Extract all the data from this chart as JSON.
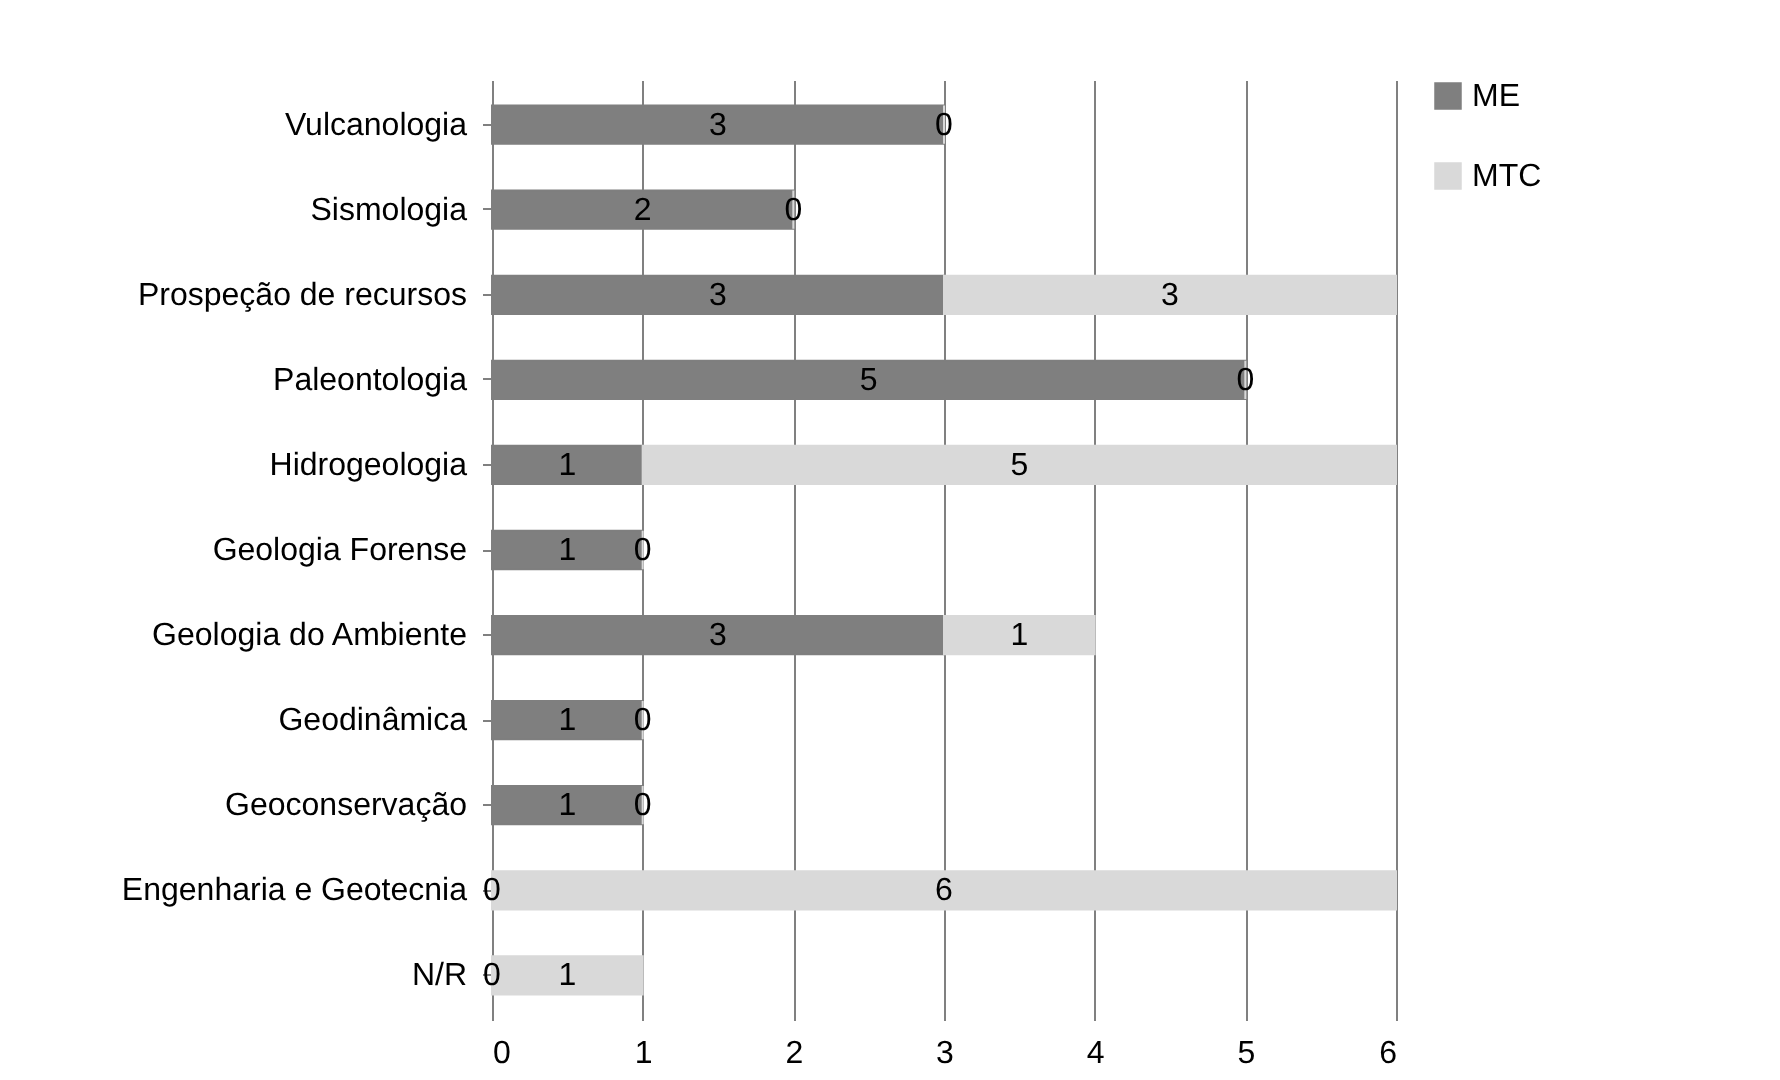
{
  "chart_data": {
    "type": "bar",
    "orientation": "horizontal",
    "stacked": true,
    "categories": [
      "Vulcanologia",
      "Sismologia",
      "Prospeção de recursos",
      "Paleontologia",
      "Hidrogeologia",
      "Geologia Forense",
      "Geologia do Ambiente",
      "Geodinâmica",
      "Geoconservação",
      "Engenharia e Geotecnia",
      "N/R"
    ],
    "series": [
      {
        "name": "ME",
        "color": "#7f7f7f",
        "values": [
          3,
          2,
          3,
          5,
          1,
          1,
          3,
          1,
          1,
          0,
          0
        ]
      },
      {
        "name": "MTC",
        "color": "#d9d9d9",
        "values": [
          0,
          0,
          3,
          0,
          5,
          0,
          1,
          0,
          0,
          6,
          1
        ]
      }
    ],
    "xlim": [
      0,
      6
    ],
    "xticks": [
      0,
      1,
      2,
      3,
      4,
      5,
      6
    ],
    "grid": "x",
    "legend": "right",
    "data_labels": true
  }
}
